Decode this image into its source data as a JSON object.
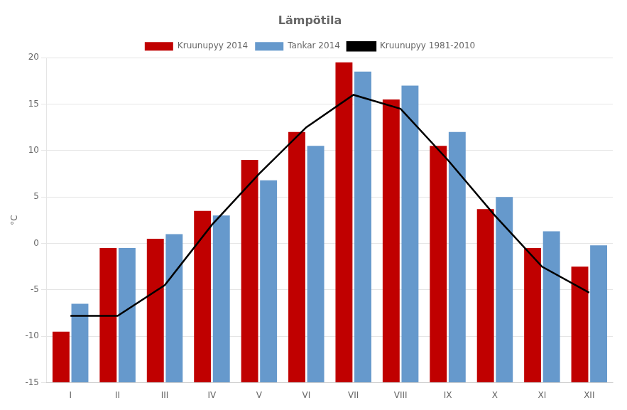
{
  "chart_data": {
    "type": "bar",
    "title": "Lämpötila",
    "ylabel": "°C",
    "categories": [
      "I",
      "II",
      "III",
      "IV",
      "V",
      "VI",
      "VII",
      "VIII",
      "IX",
      "X",
      "XI",
      "XII"
    ],
    "series": [
      {
        "name": "Kruunupyy 2014",
        "color": "#C00000",
        "values": [
          -9.5,
          -0.5,
          0.5,
          3.5,
          9.0,
          12.0,
          19.5,
          15.5,
          10.5,
          3.7,
          -0.5,
          -2.5
        ]
      },
      {
        "name": "Tankar 2014",
        "color": "#6699CC",
        "values": [
          -6.5,
          -0.5,
          1.0,
          3.0,
          6.8,
          10.5,
          18.5,
          17.0,
          12.0,
          5.0,
          1.3,
          -0.2
        ]
      },
      {
        "name": "Kruunupyy 1981-2010",
        "type": "line",
        "color": "#000000",
        "values": [
          -7.8,
          -7.8,
          -4.5,
          2.0,
          7.5,
          12.5,
          16.0,
          14.5,
          9.0,
          3.0,
          -2.5,
          -5.3
        ]
      }
    ],
    "ylim": [
      -15,
      20
    ],
    "yticks": [
      -15,
      -10,
      -5,
      0,
      5,
      10,
      15,
      20
    ],
    "grid": true,
    "legend": "top"
  }
}
